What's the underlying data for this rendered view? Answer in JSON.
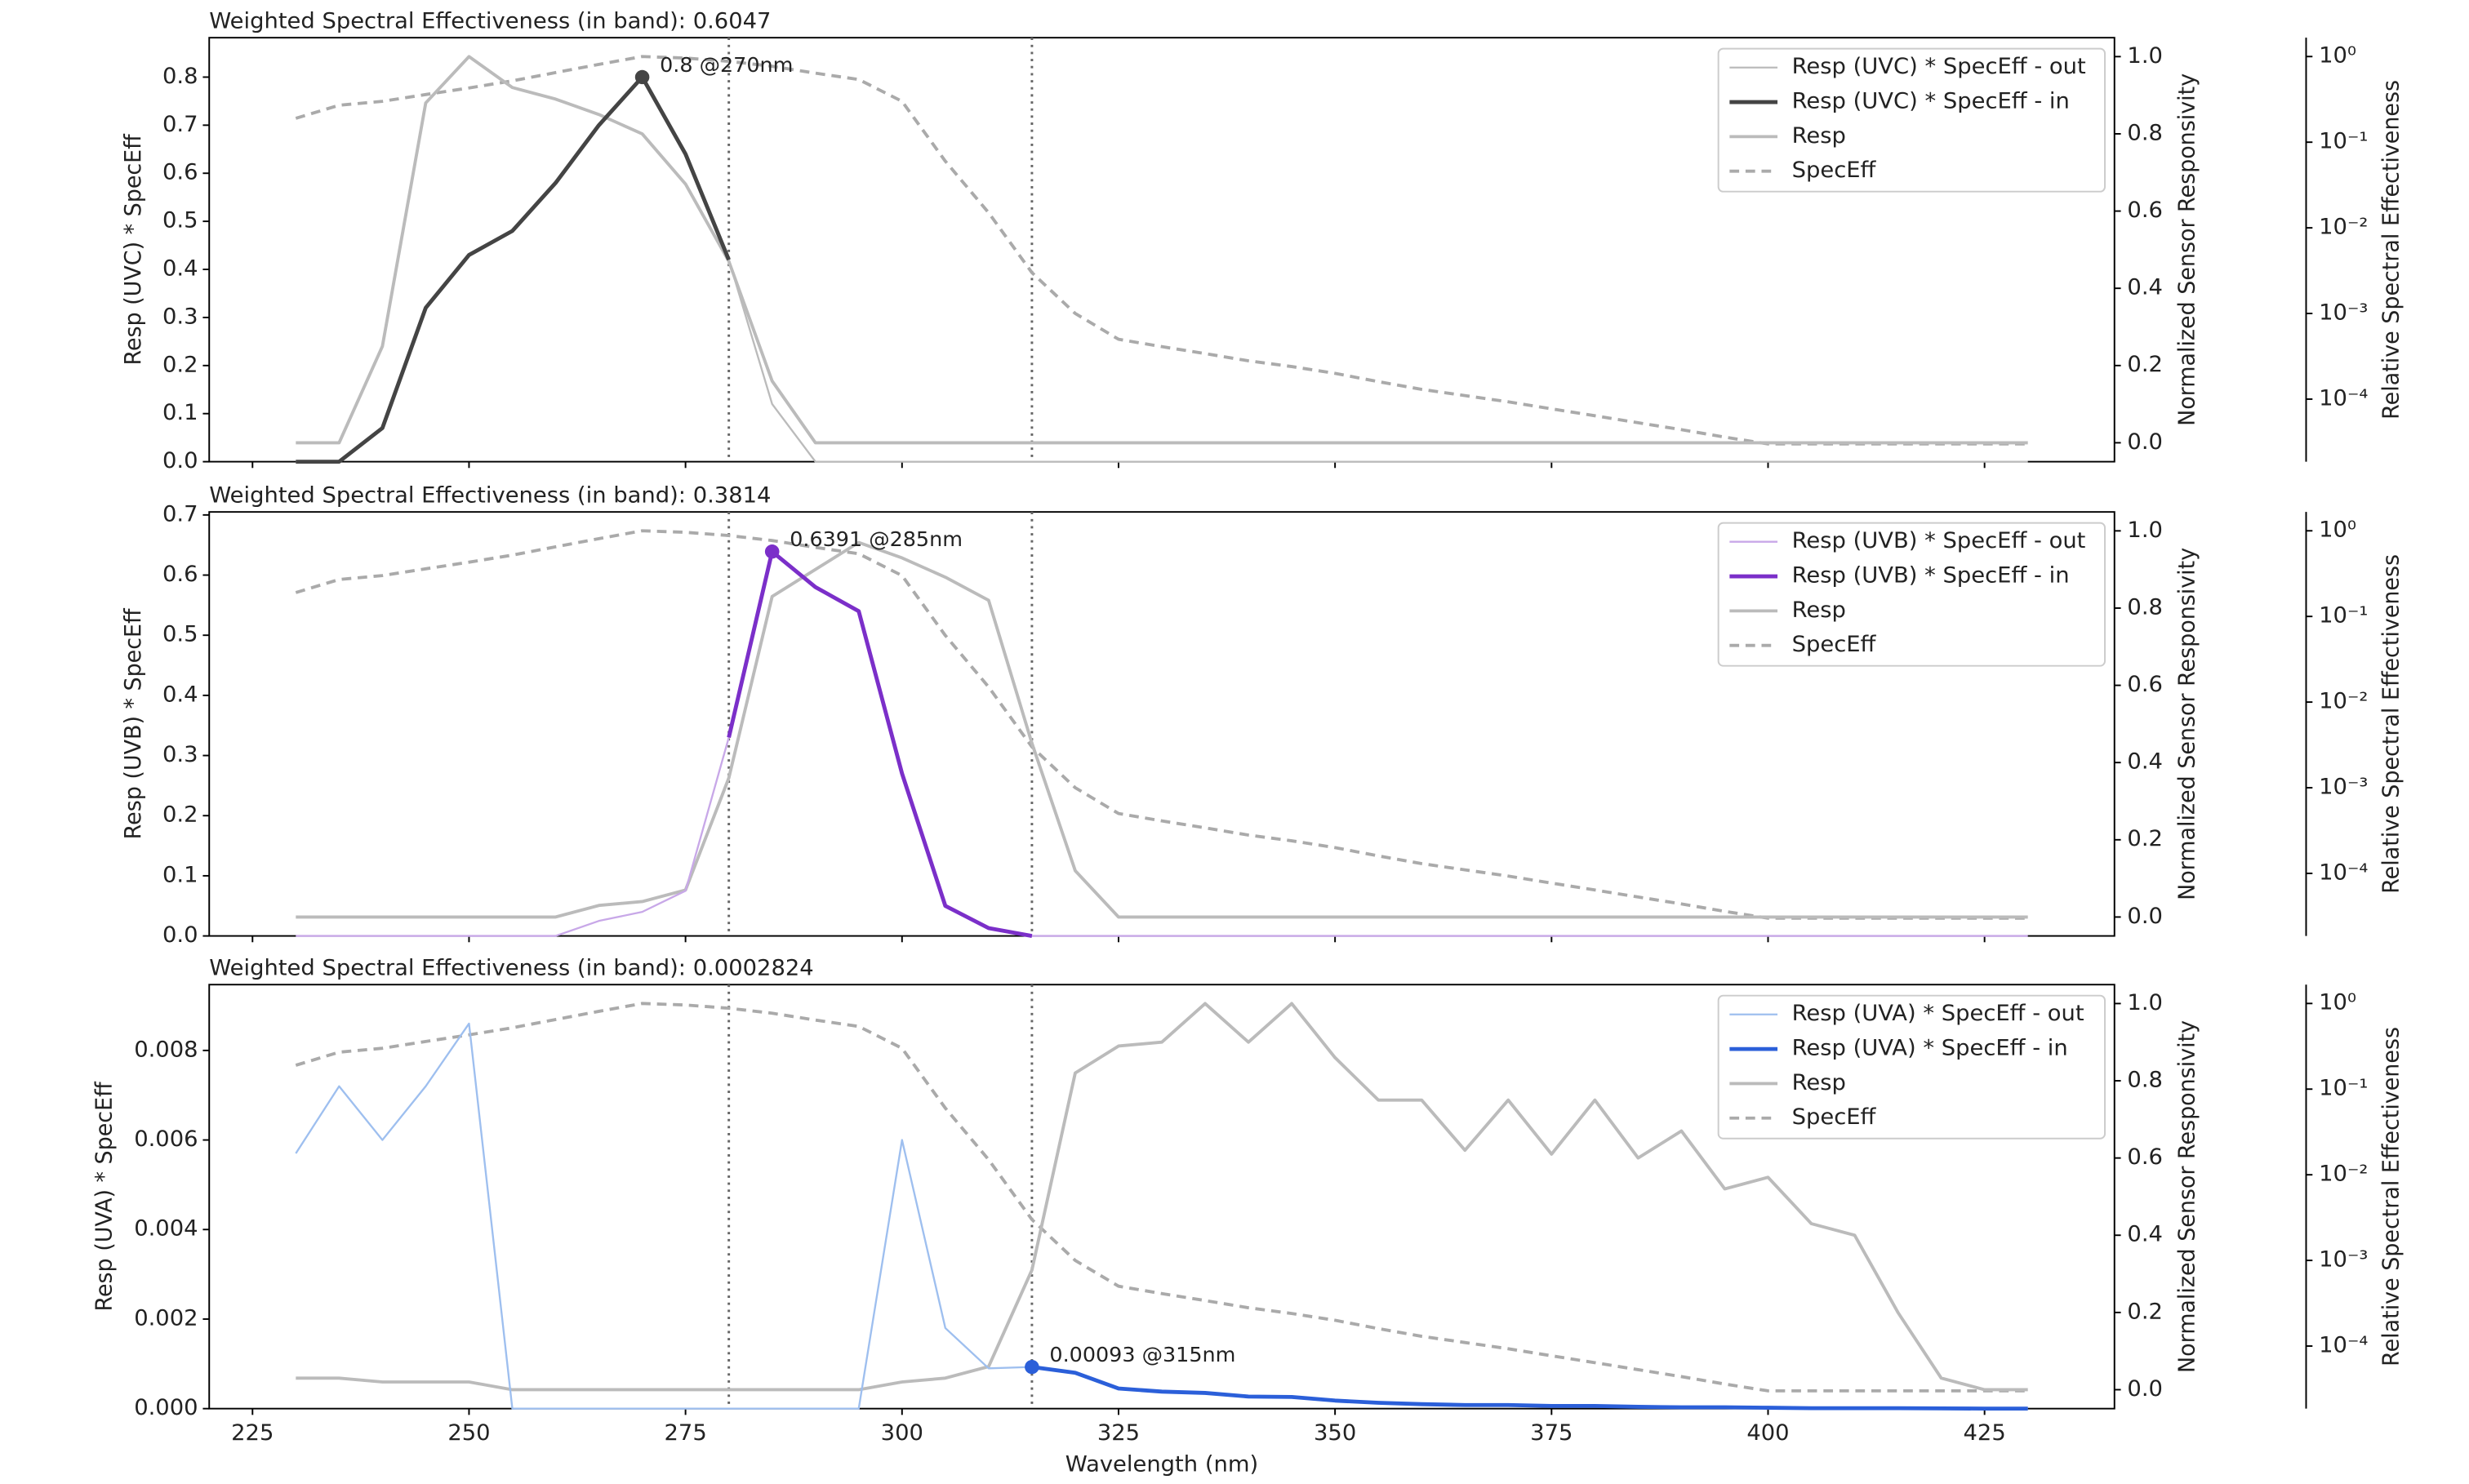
{
  "chart_data": [
    {
      "type": "line",
      "title": "Weighted Spectral Effectiveness (in band): 0.6047",
      "title_color": "#555555",
      "ylabel": "Resp (UVC) * SpecEff",
      "y2label": "Normalized Sensor Responsivity",
      "y3label": "Relative Spectral Effectiveness",
      "x": [
        230,
        235,
        240,
        245,
        250,
        255,
        260,
        265,
        270,
        275,
        280,
        285,
        290,
        295,
        300,
        305,
        310,
        315,
        320,
        325,
        330,
        335,
        340,
        345,
        350,
        355,
        360,
        365,
        370,
        375,
        380,
        385,
        390,
        395,
        400,
        405,
        410,
        415,
        420,
        425,
        430
      ],
      "xlim": [
        220,
        440
      ],
      "xticks": [
        225,
        250,
        275,
        300,
        325,
        350,
        375,
        400,
        425
      ],
      "ylim": [
        0,
        0.882
      ],
      "yticks": [
        {
          "value": 0,
          "label": "0.0"
        },
        0.1,
        0.2,
        0.3,
        0.4,
        0.5,
        0.6,
        0.7,
        0.8
      ],
      "y2lim": [
        -0.049,
        1.049
      ],
      "y2ticks": [
        {
          "value": 0,
          "label": "0.0"
        },
        0.2,
        0.4,
        0.6,
        0.8,
        {
          "value": 1,
          "label": "1.0"
        }
      ],
      "y3scale": "log",
      "y3lim": [
        1.86e-05,
        1.66
      ],
      "y3ticks": [
        {
          "value": 1,
          "label": "10⁰"
        },
        {
          "value": 0.1,
          "label": "10⁻¹"
        },
        {
          "value": 0.01,
          "label": "10⁻²"
        },
        {
          "value": 0.001,
          "label": "10⁻³"
        },
        {
          "value": 0.0001,
          "label": "10⁻⁴"
        }
      ],
      "vlines": [
        280,
        315
      ],
      "legend": "upper right",
      "series": [
        {
          "name": "Resp (UVC) * SpecEff - out",
          "color": "#bbbbbb",
          "linewidth": 1.2,
          "axis": "y",
          "values": [
            0,
            0,
            0.07,
            0.32,
            0.43,
            0.48,
            0.58,
            0.7,
            0.8,
            0.64,
            0.42,
            0.12,
            0,
            0,
            0,
            0,
            0,
            0,
            0,
            0,
            0,
            0,
            0,
            0,
            0,
            0,
            0,
            0,
            0,
            0,
            0,
            0,
            0,
            0,
            0,
            0,
            0,
            0,
            0,
            0,
            0
          ]
        },
        {
          "name": "Resp (UVC) * SpecEff - in",
          "color": "#444444",
          "linewidth": 2.5,
          "axis": "y",
          "values": [
            0,
            0,
            0.07,
            0.32,
            0.43,
            0.48,
            0.58,
            0.7,
            0.8,
            0.64,
            0.42,
            null,
            null,
            null,
            null,
            null,
            null,
            null,
            null,
            null,
            null,
            null,
            null,
            null,
            null,
            null,
            null,
            null,
            null,
            null,
            null,
            null,
            null,
            null,
            null,
            null,
            null,
            null,
            null,
            null,
            null
          ]
        },
        {
          "name": "Resp",
          "color": "#bbbbbb",
          "linewidth": 2,
          "axis": "y2",
          "values": [
            0,
            0,
            0.25,
            0.88,
            1.0,
            0.92,
            0.89,
            0.85,
            0.8,
            0.67,
            0.47,
            0.16,
            0,
            0,
            0,
            0,
            0,
            0,
            0,
            0,
            0,
            0,
            0,
            0,
            0,
            0,
            0,
            0,
            0,
            0,
            0,
            0,
            0,
            0,
            0,
            0,
            0,
            0,
            0,
            0,
            0
          ]
        },
        {
          "name": "SpecEff",
          "color": "#aaaaaa",
          "linewidth": 2,
          "dashed": true,
          "axis": "y3",
          "values": [
            0.19,
            0.27,
            0.3,
            0.36,
            0.43,
            0.52,
            0.65,
            0.81,
            1.0,
            0.96,
            0.88,
            0.77,
            0.64,
            0.54,
            0.3,
            0.06,
            0.015,
            0.003,
            0.001,
            0.0005,
            0.00041,
            0.00034,
            0.00028,
            0.00024,
            0.0002,
            0.00016,
            0.00013,
            0.00011,
            9.3e-05,
            7.7e-05,
            6.4e-05,
            5.3e-05,
            4.4e-05,
            3.6e-05,
            3e-05,
            3e-05,
            3e-05,
            3e-05,
            3e-05,
            3e-05,
            3e-05
          ]
        }
      ],
      "annotation": {
        "text": "0.8 @270nm",
        "x": 270,
        "y": 0.8,
        "color": "#444444"
      }
    },
    {
      "type": "line",
      "title": "Weighted Spectral Effectiveness (in band): 0.3814",
      "title_color": "#7b2fc9",
      "ylabel": "Resp (UVB) * SpecEff",
      "y2label": "Normalized Sensor Responsivity",
      "y3label": "Relative Spectral Effectiveness",
      "x": [
        230,
        235,
        240,
        245,
        250,
        255,
        260,
        265,
        270,
        275,
        280,
        285,
        290,
        295,
        300,
        305,
        310,
        315,
        320,
        325,
        330,
        335,
        340,
        345,
        350,
        355,
        360,
        365,
        370,
        375,
        380,
        385,
        390,
        395,
        400,
        405,
        410,
        415,
        420,
        425,
        430
      ],
      "xlim": [
        220,
        440
      ],
      "xticks": [
        225,
        250,
        275,
        300,
        325,
        350,
        375,
        400,
        425
      ],
      "ylim": [
        0,
        0.705
      ],
      "yticks": [
        {
          "value": 0,
          "label": "0.0"
        },
        0.1,
        0.2,
        0.3,
        0.4,
        0.5,
        0.6,
        0.7
      ],
      "y2lim": [
        -0.049,
        1.049
      ],
      "y2ticks": [
        {
          "value": 0,
          "label": "0.0"
        },
        0.2,
        0.4,
        0.6,
        0.8,
        {
          "value": 1,
          "label": "1.0"
        }
      ],
      "y3scale": "log",
      "y3lim": [
        1.86e-05,
        1.66
      ],
      "y3ticks": [
        {
          "value": 1,
          "label": "10⁰"
        },
        {
          "value": 0.1,
          "label": "10⁻¹"
        },
        {
          "value": 0.01,
          "label": "10⁻²"
        },
        {
          "value": 0.001,
          "label": "10⁻³"
        },
        {
          "value": 0.0001,
          "label": "10⁻⁴"
        }
      ],
      "vlines": [
        280,
        315
      ],
      "legend": "upper right",
      "series": [
        {
          "name": "Resp (UVB) * SpecEff - out",
          "color": "#c8a8e8",
          "linewidth": 1.2,
          "axis": "y",
          "values": [
            0,
            0,
            0,
            0,
            0,
            0,
            0,
            0.025,
            0.04,
            0.075,
            0.33,
            0.6391,
            0.58,
            0.54,
            0.27,
            0.05,
            0.013,
            0,
            0,
            0,
            0,
            0,
            0,
            0,
            0,
            0,
            0,
            0,
            0,
            0,
            0,
            0,
            0,
            0,
            0,
            0,
            0,
            0,
            0,
            0,
            0
          ]
        },
        {
          "name": "Resp (UVB) * SpecEff - in",
          "color": "#7b2fc9",
          "linewidth": 2.5,
          "axis": "y",
          "values": [
            null,
            null,
            null,
            null,
            null,
            null,
            null,
            null,
            null,
            null,
            0.33,
            0.6391,
            0.58,
            0.54,
            0.27,
            0.05,
            0.013,
            0,
            null,
            null,
            null,
            null,
            null,
            null,
            null,
            null,
            null,
            null,
            null,
            null,
            null,
            null,
            null,
            null,
            null,
            null,
            null,
            null,
            null,
            null,
            null
          ]
        },
        {
          "name": "Resp",
          "color": "#bbbbbb",
          "linewidth": 2,
          "axis": "y2",
          "values": [
            0,
            0,
            0,
            0,
            0,
            0,
            0,
            0.03,
            0.04,
            0.07,
            0.36,
            0.83,
            0.9,
            0.97,
            0.93,
            0.88,
            0.82,
            0.45,
            0.12,
            0,
            0,
            0,
            0,
            0,
            0,
            0,
            0,
            0,
            0,
            0,
            0,
            0,
            0,
            0,
            0,
            0,
            0,
            0,
            0,
            0,
            0
          ]
        },
        {
          "name": "SpecEff",
          "color": "#aaaaaa",
          "linewidth": 2,
          "dashed": true,
          "axis": "y3",
          "values": [
            0.19,
            0.27,
            0.3,
            0.36,
            0.43,
            0.52,
            0.65,
            0.81,
            1.0,
            0.96,
            0.88,
            0.77,
            0.64,
            0.54,
            0.3,
            0.06,
            0.015,
            0.003,
            0.001,
            0.0005,
            0.00041,
            0.00034,
            0.00028,
            0.00024,
            0.0002,
            0.00016,
            0.00013,
            0.00011,
            9.3e-05,
            7.7e-05,
            6.4e-05,
            5.3e-05,
            4.4e-05,
            3.6e-05,
            3e-05,
            3e-05,
            3e-05,
            3e-05,
            3e-05,
            3e-05,
            3e-05
          ]
        }
      ],
      "annotation": {
        "text": "0.6391 @285nm",
        "x": 285,
        "y": 0.6391,
        "color": "#7b2fc9"
      }
    },
    {
      "type": "line",
      "title": "Weighted Spectral Effectiveness (in band): 0.0002824",
      "title_color": "#2b5fd9",
      "ylabel": "Resp (UVA) * SpecEff",
      "y2label": "Normalized Sensor Responsivity",
      "y3label": "Relative Spectral Effectiveness",
      "xlabel": "Wavelength (nm)",
      "x": [
        230,
        235,
        240,
        245,
        250,
        255,
        260,
        265,
        270,
        275,
        280,
        285,
        290,
        295,
        300,
        305,
        310,
        315,
        320,
        325,
        330,
        335,
        340,
        345,
        350,
        355,
        360,
        365,
        370,
        375,
        380,
        385,
        390,
        395,
        400,
        405,
        410,
        415,
        420,
        425,
        430
      ],
      "xlim": [
        220,
        440
      ],
      "xticks": [
        225,
        250,
        275,
        300,
        325,
        350,
        375,
        400,
        425
      ],
      "ylim": [
        0,
        0.00947
      ],
      "yticks": [
        {
          "value": 0,
          "label": "0.000"
        },
        {
          "value": 0.002,
          "label": "0.002"
        },
        {
          "value": 0.004,
          "label": "0.004"
        },
        {
          "value": 0.006,
          "label": "0.006"
        },
        {
          "value": 0.008,
          "label": "0.008"
        }
      ],
      "y2lim": [
        -0.049,
        1.049
      ],
      "y2ticks": [
        {
          "value": 0,
          "label": "0.0"
        },
        0.2,
        0.4,
        0.6,
        0.8,
        {
          "value": 1,
          "label": "1.0"
        }
      ],
      "y3scale": "log",
      "y3lim": [
        1.86e-05,
        1.66
      ],
      "y3ticks": [
        {
          "value": 1,
          "label": "10⁰"
        },
        {
          "value": 0.1,
          "label": "10⁻¹"
        },
        {
          "value": 0.01,
          "label": "10⁻²"
        },
        {
          "value": 0.001,
          "label": "10⁻³"
        },
        {
          "value": 0.0001,
          "label": "10⁻⁴"
        }
      ],
      "vlines": [
        280,
        315
      ],
      "legend": "upper right",
      "series": [
        {
          "name": "Resp (UVA) * SpecEff - out",
          "color": "#9ebfef",
          "linewidth": 1.2,
          "axis": "y",
          "values": [
            0.0057,
            0.0072,
            0.006,
            0.0072,
            0.0086,
            0,
            0,
            0,
            0,
            0,
            0,
            0,
            0,
            0,
            0.006,
            0.0018,
            0.0009,
            0.00093,
            0.0008,
            0.00045,
            0.00038,
            0.00035,
            0.00027,
            0.00026,
            0.00018,
            0.00013,
            0.0001,
            8e-05,
            8e-05,
            6e-05,
            6e-05,
            4e-05,
            3e-05,
            3e-05,
            2e-05,
            1e-05,
            1e-05,
            1e-05,
            5e-06,
            1e-06,
            0
          ]
        },
        {
          "name": "Resp (UVA) * SpecEff - in",
          "color": "#2b5fd9",
          "linewidth": 2.5,
          "axis": "y",
          "values": [
            null,
            null,
            null,
            null,
            null,
            null,
            null,
            null,
            null,
            null,
            null,
            null,
            null,
            null,
            null,
            null,
            null,
            0.00093,
            0.0008,
            0.00045,
            0.00038,
            0.00035,
            0.00027,
            0.00026,
            0.00018,
            0.00013,
            0.0001,
            8e-05,
            8e-05,
            6e-05,
            6e-05,
            4e-05,
            3e-05,
            3e-05,
            2e-05,
            1e-05,
            1e-05,
            1e-05,
            5e-06,
            1e-06,
            0
          ]
        },
        {
          "name": "Resp",
          "color": "#bbbbbb",
          "linewidth": 2,
          "axis": "y2",
          "values": [
            0.03,
            0.03,
            0.02,
            0.02,
            0.02,
            0,
            0,
            0,
            0,
            0,
            0,
            0,
            0,
            0,
            0.02,
            0.03,
            0.06,
            0.31,
            0.82,
            0.89,
            0.9,
            1.0,
            0.9,
            1.0,
            0.86,
            0.75,
            0.75,
            0.62,
            0.75,
            0.61,
            0.75,
            0.6,
            0.67,
            0.52,
            0.55,
            0.43,
            0.4,
            0.2,
            0.03,
            0,
            0
          ]
        },
        {
          "name": "SpecEff",
          "color": "#aaaaaa",
          "linewidth": 2,
          "dashed": true,
          "axis": "y3",
          "values": [
            0.19,
            0.27,
            0.3,
            0.36,
            0.43,
            0.52,
            0.65,
            0.81,
            1.0,
            0.96,
            0.88,
            0.77,
            0.64,
            0.54,
            0.3,
            0.06,
            0.015,
            0.003,
            0.001,
            0.0005,
            0.00041,
            0.00034,
            0.00028,
            0.00024,
            0.0002,
            0.00016,
            0.00013,
            0.00011,
            9.3e-05,
            7.7e-05,
            6.4e-05,
            5.3e-05,
            4.4e-05,
            3.6e-05,
            3e-05,
            3e-05,
            3e-05,
            3e-05,
            3e-05,
            3e-05,
            3e-05
          ]
        }
      ],
      "annotation": {
        "text": "0.00093 @315nm",
        "x": 315,
        "y": 0.00093,
        "color": "#2b5fd9"
      }
    }
  ]
}
